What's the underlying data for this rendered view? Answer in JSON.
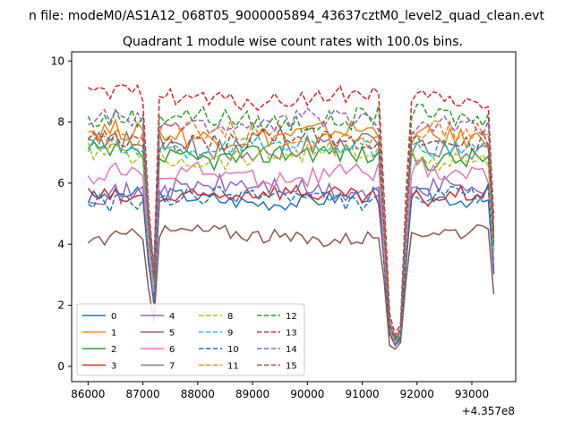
{
  "suptitle": "n file: modeM0/AS1A12_068T05_9000005894_43637cztM0_level2_quad_clean.evt",
  "chart_data": {
    "type": "line",
    "title": "Quadrant 1 module wise count rates with 100.0s bins.",
    "xlabel": "",
    "ylabel": "",
    "x_offset_label": "+4.357e8",
    "xlim": [
      85700,
      93800
    ],
    "ylim": [
      -0.5,
      10.3
    ],
    "xticks": [
      86000,
      87000,
      88000,
      89000,
      90000,
      91000,
      92000,
      93000
    ],
    "xtick_labels": [
      "86000",
      "87000",
      "88000",
      "89000",
      "90000",
      "91000",
      "92000",
      "93000"
    ],
    "yticks": [
      0,
      2,
      4,
      6,
      8,
      10
    ],
    "ytick_labels": [
      "0",
      "2",
      "4",
      "6",
      "8",
      "10"
    ],
    "grid": false,
    "legend_position": "lower-left",
    "legend_ncol": 4,
    "x_range": [
      86000,
      93400
    ],
    "bin": 100,
    "gaps": [
      {
        "from": 86950,
        "to": 87300,
        "values": [
          8.0,
          5.0,
          3.0,
          4.0
        ]
      },
      {
        "from": 91350,
        "to": 91850,
        "values": [
          5.0,
          1.5,
          0.0,
          0.8,
          1.2,
          5.0
        ]
      }
    ],
    "series": [
      {
        "name": "0",
        "color": "#1f77b4",
        "dash": "solid",
        "level": 5.5,
        "noise": 0.25
      },
      {
        "name": "1",
        "color": "#ff7f0e",
        "dash": "solid",
        "level": 7.6,
        "noise": 0.35
      },
      {
        "name": "2",
        "color": "#2ca02c",
        "dash": "solid",
        "level": 6.9,
        "noise": 0.35
      },
      {
        "name": "3",
        "color": "#d62728",
        "dash": "solid",
        "level": 5.6,
        "noise": 0.3
      },
      {
        "name": "4",
        "color": "#9467bd",
        "dash": "solid",
        "level": 5.8,
        "noise": 0.35
      },
      {
        "name": "5",
        "color": "#8c564b",
        "dash": "solid",
        "level": 4.3,
        "noise": 0.25
      },
      {
        "name": "6",
        "color": "#e377c2",
        "dash": "solid",
        "level": 6.3,
        "noise": 0.35
      },
      {
        "name": "7",
        "color": "#7f7f7f",
        "dash": "solid",
        "level": 7.2,
        "noise": 0.35
      },
      {
        "name": "8",
        "color": "#bcbd22",
        "dash": "dashed",
        "level": 6.9,
        "noise": 0.35
      },
      {
        "name": "9",
        "color": "#17becf",
        "dash": "dashed",
        "level": 7.2,
        "noise": 0.3
      },
      {
        "name": "10",
        "color": "#1f77b4",
        "dash": "dashed",
        "level": 5.5,
        "noise": 0.3
      },
      {
        "name": "11",
        "color": "#ff7f0e",
        "dash": "dashed",
        "level": 7.6,
        "noise": 0.35
      },
      {
        "name": "12",
        "color": "#2ca02c",
        "dash": "dashed",
        "level": 8.1,
        "noise": 0.35
      },
      {
        "name": "13",
        "color": "#d62728",
        "dash": "dashed",
        "level": 8.8,
        "noise": 0.3
      },
      {
        "name": "14",
        "color": "#9467bd",
        "dash": "dashed",
        "level": 8.0,
        "noise": 0.35
      },
      {
        "name": "15",
        "color": "#8c564b",
        "dash": "dashed",
        "level": 7.4,
        "noise": 0.3
      }
    ]
  }
}
